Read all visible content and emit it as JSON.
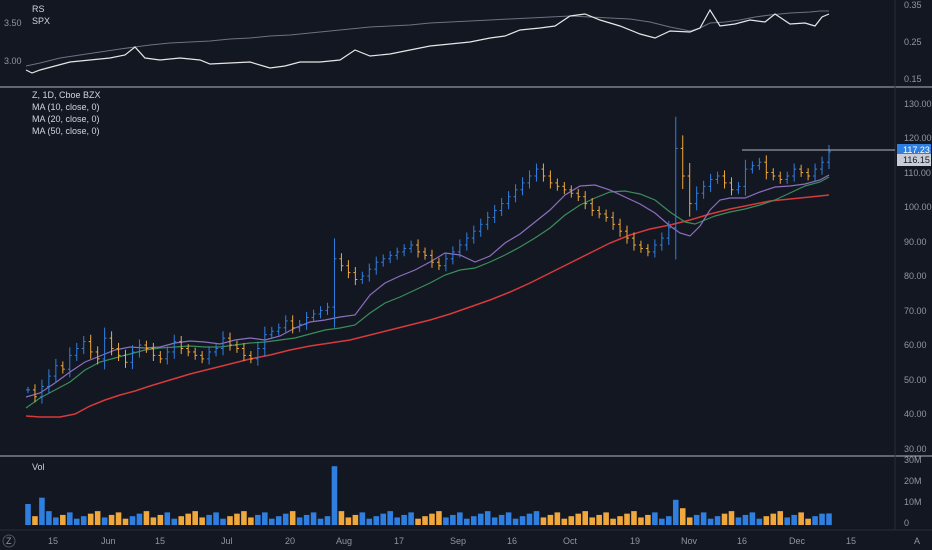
{
  "colors": {
    "background": "#131722",
    "divider": "#b2b5be",
    "text": "#d1d4dc",
    "axis_text": "#8f96a3",
    "up": "#2f7fe0",
    "down": "#f0a83c",
    "ma10": "#8c6fbf",
    "ma20": "#3a8e5a",
    "ma50": "#d73a3a",
    "rs_line": "#e6e6e6",
    "spx_line": "#6e7280",
    "last_price_bg": "#2f7fe0",
    "prev_price_bg": "#c8ccd6"
  },
  "rs_panel": {
    "legend": [
      "RS",
      "SPX"
    ],
    "left_axis": [
      "3.50",
      "3.00"
    ],
    "right_axis": [
      "0.35",
      "0.25",
      "0.15"
    ]
  },
  "price_panel": {
    "legend": [
      "Z, 1D, Cboe BZX",
      "MA (10, close, 0)",
      "MA (20, close, 0)",
      "MA (50, close, 0)"
    ],
    "axis": [
      "130.00",
      "120.00",
      "110.00",
      "100.00",
      "90.00",
      "80.00",
      "70.00",
      "60.00",
      "50.00",
      "40.00",
      "30.00"
    ],
    "last_price": "117.23",
    "prev_price": "116.15"
  },
  "volume_panel": {
    "legend": "Vol",
    "axis": [
      "30M",
      "20M",
      "10M",
      "0"
    ]
  },
  "time_axis": {
    "labels": [
      "15",
      "Jun",
      "15",
      "Jul",
      "20",
      "Aug",
      "17",
      "Sep",
      "16",
      "Oct",
      "19",
      "Nov",
      "16",
      "Dec",
      "15"
    ],
    "left_corner": "Z",
    "right_corner": "A"
  },
  "chart_data": {
    "type": "ohlc",
    "price_range": [
      30,
      130
    ],
    "rs_right_range": [
      0.15,
      0.35
    ],
    "volume_range_millions": [
      0,
      30
    ],
    "ohlc_count": 139,
    "approx_closes": [
      48,
      46,
      49,
      52,
      55,
      54,
      58,
      60,
      62,
      59,
      57,
      63,
      60,
      58,
      56,
      59,
      61,
      60,
      58,
      57,
      59,
      62,
      60,
      59,
      58,
      57,
      59,
      60,
      63,
      61,
      60,
      58,
      57,
      60,
      64,
      65,
      66,
      68,
      66,
      67,
      69,
      70,
      71,
      72,
      86,
      84,
      82,
      80,
      81,
      83,
      85,
      86,
      87,
      88,
      89,
      90,
      88,
      87,
      85,
      84,
      86,
      88,
      90,
      92,
      94,
      96,
      98,
      100,
      102,
      104,
      106,
      108,
      110,
      112,
      110,
      108,
      107,
      106,
      105,
      104,
      102,
      100,
      99,
      98,
      96,
      94,
      92,
      90,
      89,
      88,
      90,
      92,
      95,
      118,
      110,
      102,
      105,
      107,
      109,
      110,
      108,
      106,
      107,
      112,
      113,
      114,
      111,
      110,
      109,
      110,
      112,
      111,
      110,
      112,
      114,
      117
    ]
  }
}
